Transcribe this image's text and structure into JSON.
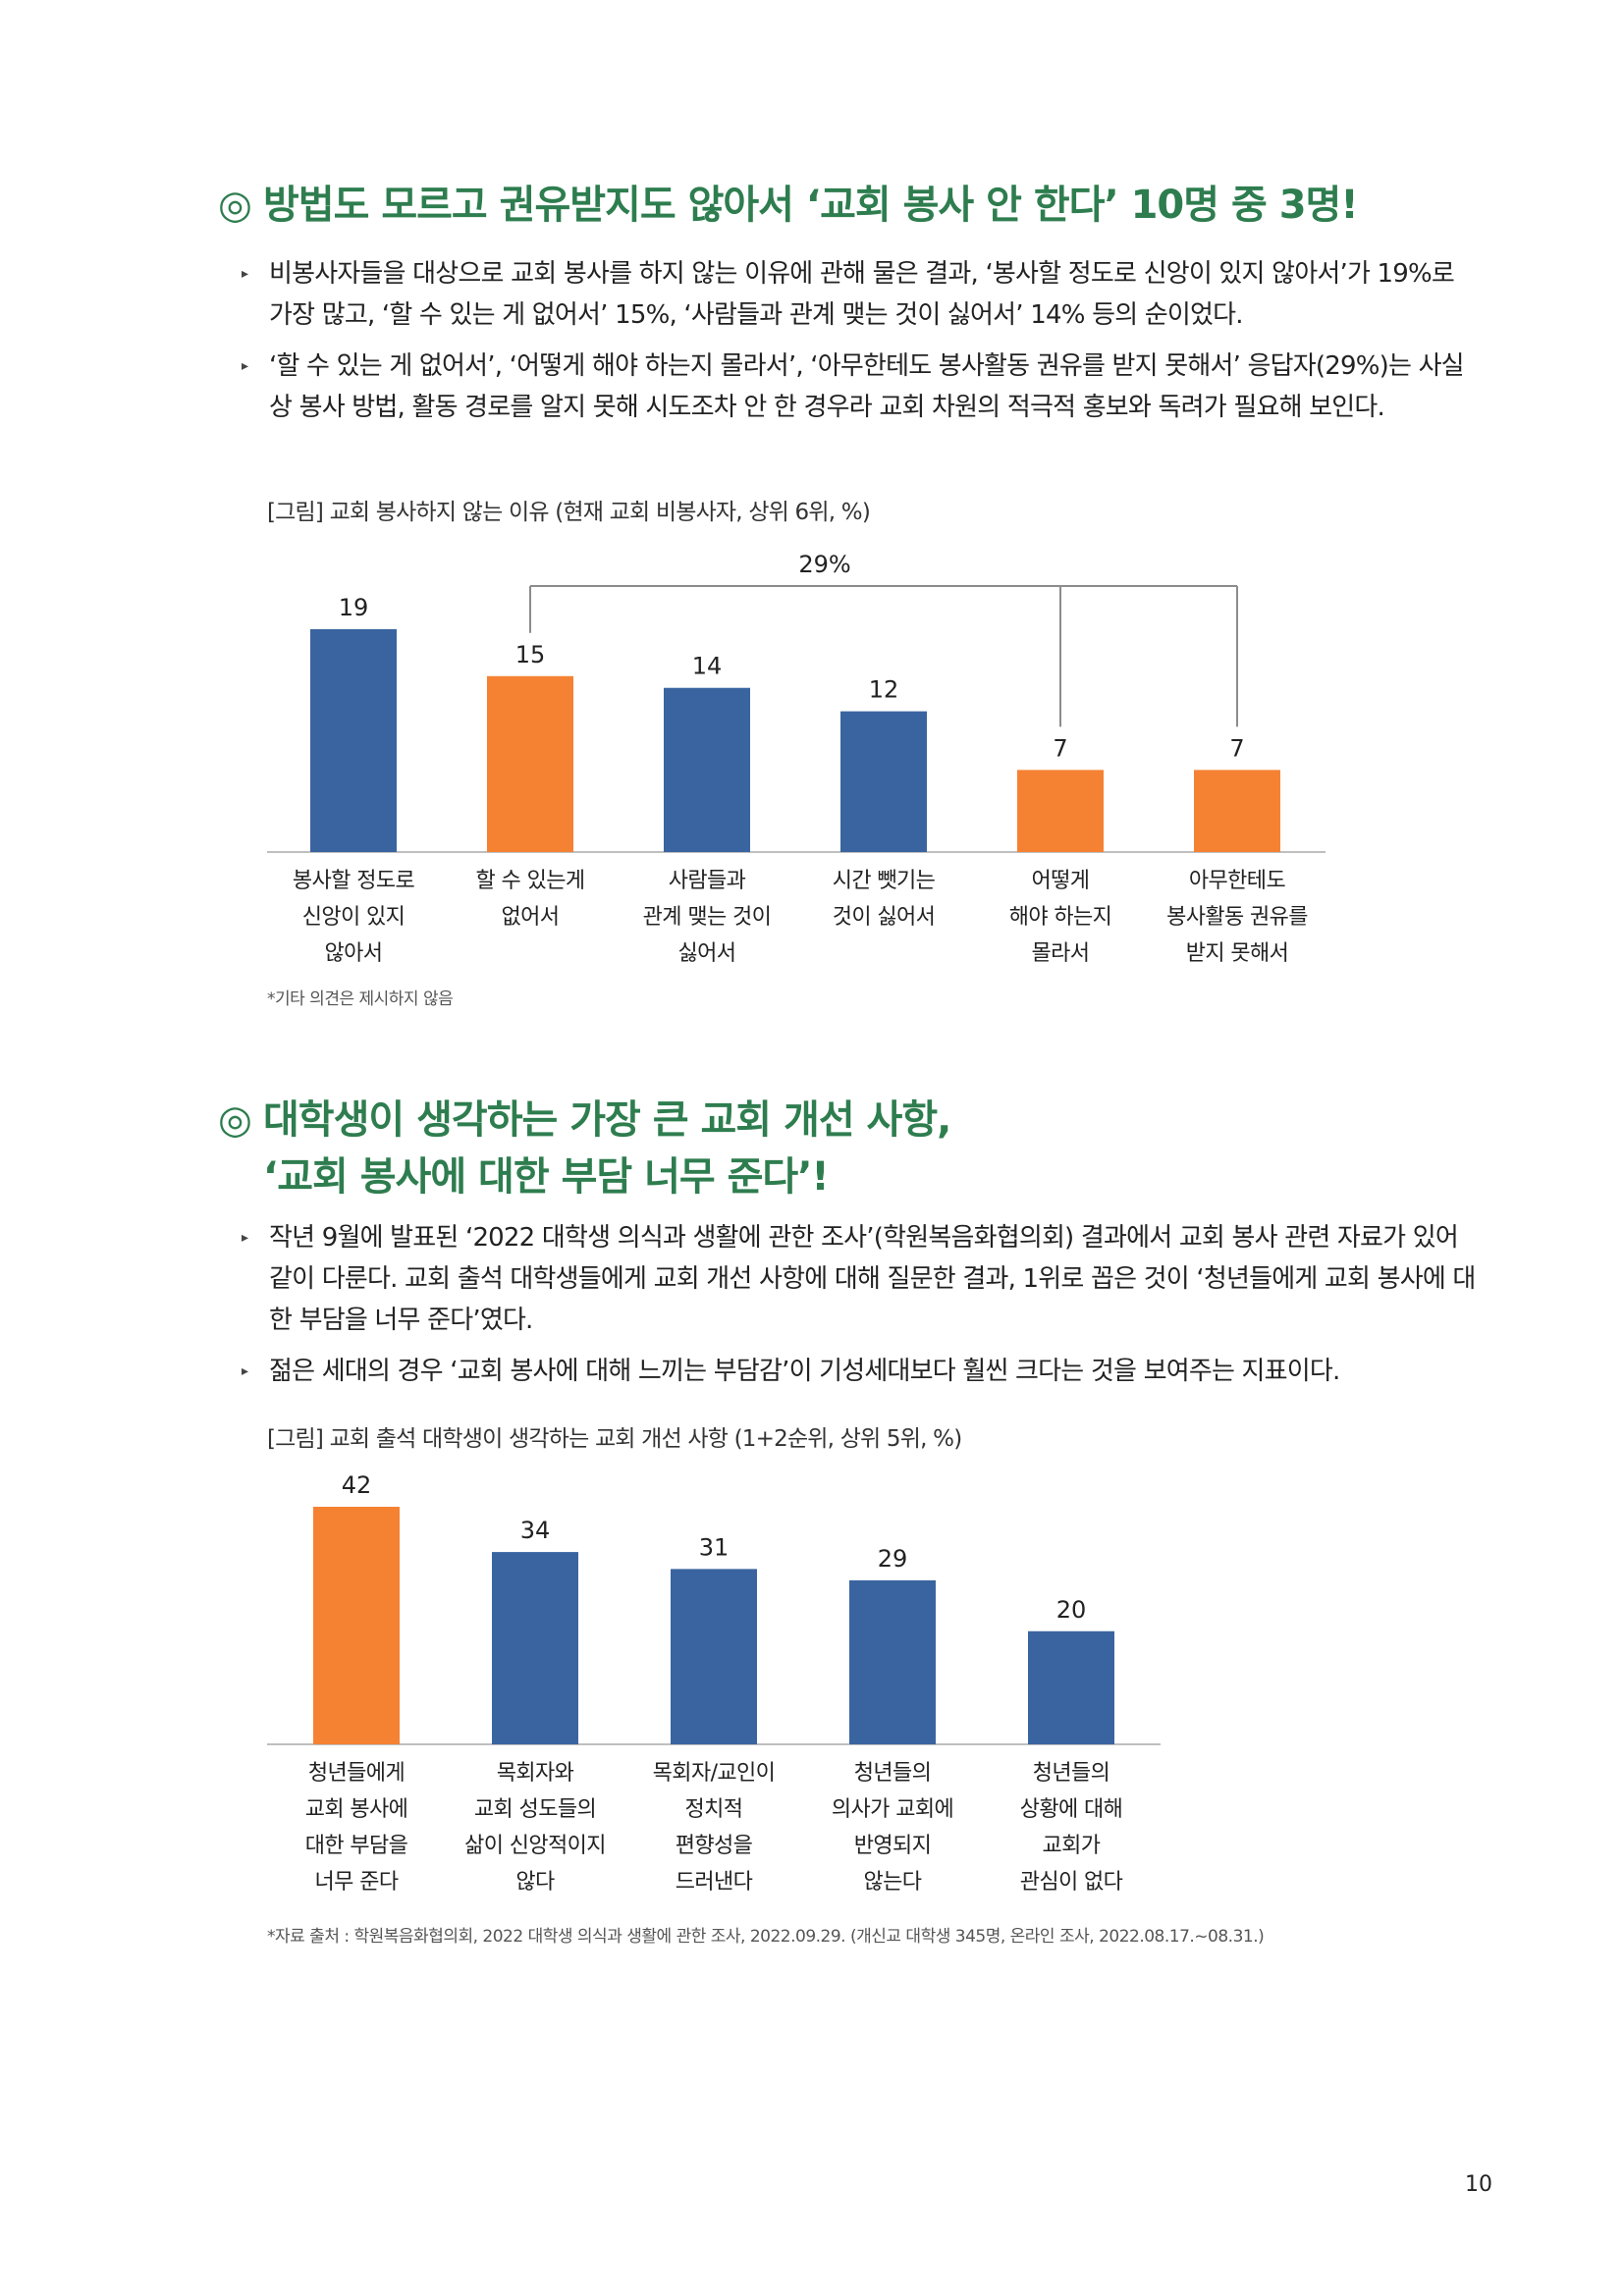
{
  "section1": {
    "mark": "◎",
    "title": "방법도 모르고 권유받지도 않아서 ‘교회 봉사 안 한다’ 10명 중 3명!",
    "bullets": [
      "비봉사자들을 대상으로 교회 봉사를 하지 않는 이유에 관해 물은 결과, ‘봉사할 정도로 신앙이 있지 않아서’가 19%로 가장 많고, ‘할 수 있는 게 없어서’ 15%, ‘사람들과 관계 맺는 것이 싫어서’ 14% 등의 순이었다.",
      "‘할 수 있는 게 없어서’, ‘어떻게 해야 하는지 몰라서’, ‘아무한테도 봉사활동 권유를 받지 못해서’ 응답자(29%)는 사실상 봉사 방법, 활동 경로를 알지 못해 시도조차 안 한 경우라 교회 차원의 적극적 홍보와 독려가 필요해 보인다."
    ],
    "figure_caption": "[그림] 교회 봉사하지 않는 이유 (현재 교회 비봉사자, 상위 6위, %)",
    "note": "*기타 의견은 제시하지 않음"
  },
  "section2": {
    "mark": "◎",
    "title_line1": "대학생이 생각하는 가장 큰 교회 개선 사항,",
    "title_line2": "‘교회 봉사에 대한 부담 너무 준다’!",
    "bullets": [
      "작년 9월에 발표된 ‘2022 대학생 의식과 생활에 관한 조사’(학원복음화협의회) 결과에서 교회 봉사 관련 자료가 있어 같이 다룬다. 교회 출석 대학생들에게 교회 개선 사항에 대해 질문한 결과, 1위로 꼽은 것이 ‘청년들에게 교회 봉사에 대한 부담을 너무 준다’였다.",
      "젊은 세대의 경우 ‘교회 봉사에 대해 느끼는 부담감’이 기성세대보다 훨씬 크다는 것을 보여주는 지표이다."
    ],
    "figure_caption": "[그림] 교회 출석 대학생이 생각하는 교회 개선 사항 (1+2순위, 상위 5위, %)",
    "note": "*자료 출처 : 학원복음화협의회, 2022 대학생 의식과 생활에 관한 조사, 2022.09.29. (개신교 대학생 345명, 온라인 조사, 2022.08.17.~08.31.)"
  },
  "page_number": "10",
  "colors": {
    "blue": "#3a64a0",
    "orange": "#f58233",
    "title_green": "#2e7d4f"
  },
  "chart_data": [
    {
      "type": "bar",
      "categories": [
        [
          "봉사할 정도로",
          "신앙이 있지",
          "않아서"
        ],
        [
          "할 수 있는게",
          "없어서"
        ],
        [
          "사람들과",
          "관계 맺는 것이",
          "싫어서"
        ],
        [
          "시간 뺏기는",
          "것이 싫어서"
        ],
        [
          "어떻게",
          "해야 하는지",
          "몰라서"
        ],
        [
          "아무한테도",
          "봉사활동 권유를",
          "받지 못해서"
        ]
      ],
      "values": [
        19,
        15,
        14,
        12,
        7,
        7
      ],
      "bar_colors": [
        "#3a64a0",
        "#f58233",
        "#3a64a0",
        "#3a64a0",
        "#f58233",
        "#f58233"
      ],
      "ylim": [
        0,
        22
      ],
      "bracket": {
        "label": "29%",
        "categories": [
          1,
          4,
          5
        ]
      },
      "title": "",
      "xlabel": "",
      "ylabel": ""
    },
    {
      "type": "bar",
      "categories": [
        [
          "청년들에게",
          "교회 봉사에",
          "대한 부담을",
          "너무 준다"
        ],
        [
          "목회자와",
          "교회 성도들의",
          "삶이 신앙적이지",
          "않다"
        ],
        [
          "목회자/교인이",
          "정치적",
          "편향성을",
          "드러낸다"
        ],
        [
          "청년들의",
          "의사가 교회에",
          "반영되지",
          "않는다"
        ],
        [
          "청년들의",
          "상황에 대해",
          "교회가",
          "관심이 없다"
        ]
      ],
      "values": [
        42,
        34,
        31,
        29,
        20
      ],
      "bar_colors": [
        "#f58233",
        "#3a64a0",
        "#3a64a0",
        "#3a64a0",
        "#3a64a0"
      ],
      "ylim": [
        0,
        42
      ],
      "title": "",
      "xlabel": "",
      "ylabel": ""
    }
  ]
}
